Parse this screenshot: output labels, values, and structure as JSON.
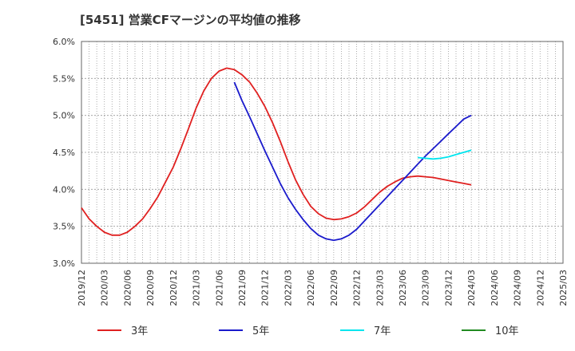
{
  "title": "[5451]  営業CFマージンの平均値の推移",
  "chart_data": {
    "type": "line",
    "title": "[5451]  営業CFマージンの平均値の推移",
    "y_ticks": [
      "6.0%",
      "5.5%",
      "5.0%",
      "4.5%",
      "4.0%",
      "3.5%",
      "3.0%"
    ],
    "ylim": [
      3.0,
      6.0
    ],
    "x_ticks": [
      "2019/12",
      "2020/03",
      "2020/06",
      "2020/09",
      "2020/12",
      "2021/03",
      "2021/06",
      "2021/09",
      "2021/12",
      "2022/03",
      "2022/06",
      "2022/09",
      "2022/12",
      "2023/03",
      "2023/06",
      "2023/09",
      "2023/12",
      "2024/03",
      "2024/06",
      "2024/09",
      "2024/12",
      "2025/03"
    ],
    "grid": true,
    "legend_position": "bottom",
    "series": [
      {
        "name": "3年",
        "color": "#e02020",
        "x": [
          "2019/12",
          "2020/01",
          "2020/02",
          "2020/03",
          "2020/04",
          "2020/05",
          "2020/06",
          "2020/07",
          "2020/08",
          "2020/09",
          "2020/10",
          "2020/11",
          "2020/12",
          "2021/01",
          "2021/02",
          "2021/03",
          "2021/04",
          "2021/05",
          "2021/06",
          "2021/07",
          "2021/08",
          "2021/09",
          "2021/10",
          "2021/11",
          "2021/12",
          "2022/01",
          "2022/02",
          "2022/03",
          "2022/04",
          "2022/05",
          "2022/06",
          "2022/07",
          "2022/08",
          "2022/09",
          "2022/10",
          "2022/11",
          "2022/12",
          "2023/01",
          "2023/02",
          "2023/03",
          "2023/04",
          "2023/05",
          "2023/06",
          "2023/07",
          "2023/08",
          "2023/09",
          "2023/10",
          "2023/11",
          "2023/12",
          "2024/01",
          "2024/02",
          "2024/03"
        ],
        "values": [
          3.75,
          3.6,
          3.5,
          3.42,
          3.38,
          3.38,
          3.42,
          3.5,
          3.6,
          3.74,
          3.9,
          4.1,
          4.3,
          4.55,
          4.82,
          5.1,
          5.33,
          5.5,
          5.6,
          5.64,
          5.62,
          5.55,
          5.45,
          5.3,
          5.12,
          4.9,
          4.65,
          4.38,
          4.13,
          3.93,
          3.77,
          3.67,
          3.61,
          3.59,
          3.6,
          3.63,
          3.68,
          3.76,
          3.86,
          3.96,
          4.04,
          4.1,
          4.15,
          4.17,
          4.18,
          4.17,
          4.16,
          4.14,
          4.12,
          4.1,
          4.08,
          4.06
        ]
      },
      {
        "name": "5年",
        "color": "#1a1acc",
        "x": [
          "2021/08",
          "2021/09",
          "2021/10",
          "2021/11",
          "2021/12",
          "2022/01",
          "2022/02",
          "2022/03",
          "2022/04",
          "2022/05",
          "2022/06",
          "2022/07",
          "2022/08",
          "2022/09",
          "2022/10",
          "2022/11",
          "2022/12",
          "2023/01",
          "2023/02",
          "2023/03",
          "2023/04",
          "2023/05",
          "2023/06",
          "2023/07",
          "2023/08",
          "2023/09",
          "2023/10",
          "2023/11",
          "2023/12",
          "2024/01",
          "2024/02",
          "2024/03"
        ],
        "values": [
          5.45,
          5.2,
          4.98,
          4.75,
          4.52,
          4.3,
          4.08,
          3.89,
          3.73,
          3.59,
          3.47,
          3.38,
          3.33,
          3.31,
          3.33,
          3.38,
          3.46,
          3.57,
          3.68,
          3.79,
          3.9,
          4.01,
          4.12,
          4.23,
          4.34,
          4.45,
          4.55,
          4.65,
          4.75,
          4.85,
          4.95,
          5.0
        ]
      },
      {
        "name": "7年",
        "color": "#00e5ee",
        "x": [
          "2023/08",
          "2023/09",
          "2023/10",
          "2023/11",
          "2023/12",
          "2024/01",
          "2024/02",
          "2024/03"
        ],
        "values": [
          4.43,
          4.42,
          4.41,
          4.42,
          4.44,
          4.47,
          4.5,
          4.53
        ]
      },
      {
        "name": "10年",
        "color": "#228b22",
        "x": [],
        "values": []
      }
    ]
  }
}
